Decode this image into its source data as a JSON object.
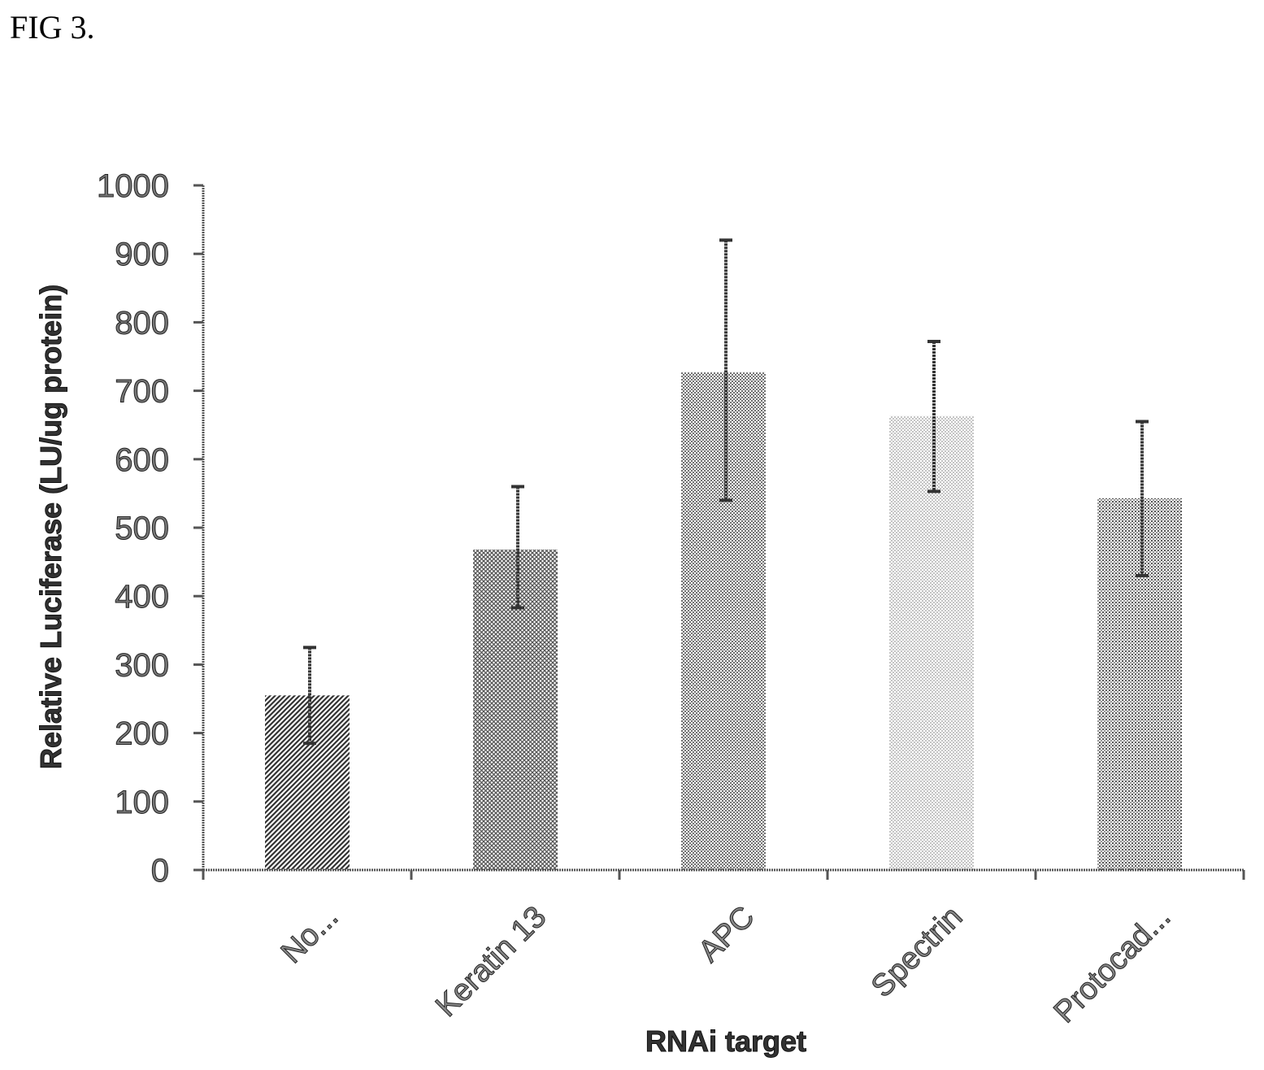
{
  "figure": {
    "label": "FIG 3."
  },
  "chart_data": {
    "type": "bar",
    "categories": [
      "No...",
      "Keratin 13",
      "APC",
      "Spectrin",
      "Protocad..."
    ],
    "values": [
      255,
      468,
      727,
      663,
      543
    ],
    "error_upper": [
      325,
      560,
      920,
      772,
      655
    ],
    "error_lower": [
      185,
      383,
      540,
      553,
      430
    ],
    "xlabel": "RNAi target",
    "ylabel": "Relative Luciferase (LU/ug protein)",
    "ylim": [
      0,
      1000
    ],
    "yticks": [
      0,
      100,
      200,
      300,
      400,
      500,
      600,
      700,
      800,
      900,
      1000
    ],
    "grid": false,
    "legend": "none",
    "patterns": [
      "dense-diagonal",
      "cross-hatch",
      "fine-dots",
      "light-dots",
      "medium-dots"
    ]
  }
}
